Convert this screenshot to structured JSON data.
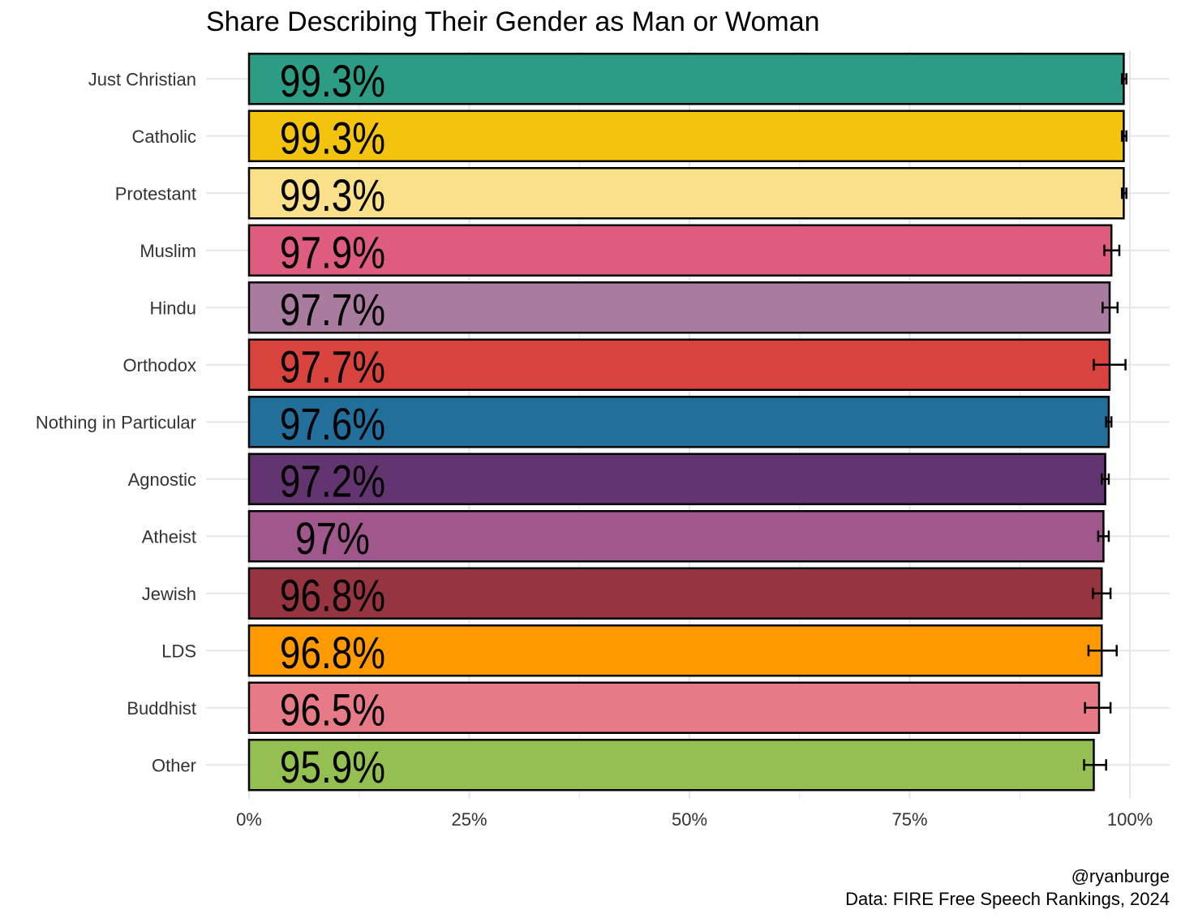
{
  "chart_data": {
    "type": "bar",
    "orientation": "horizontal",
    "title": "Share Describing Their Gender as Man or Woman",
    "xlabel": "",
    "ylabel": "",
    "xlim": [
      0,
      100
    ],
    "x_ticks": [
      "0%",
      "25%",
      "50%",
      "75%",
      "100%"
    ],
    "grid": true,
    "legend": "none",
    "categories": [
      "Just Christian",
      "Catholic",
      "Protestant",
      "Muslim",
      "Hindu",
      "Orthodox",
      "Nothing in Particular",
      "Agnostic",
      "Atheist",
      "Jewish",
      "LDS",
      "Buddhist",
      "Other"
    ],
    "values": [
      99.3,
      99.3,
      99.3,
      97.9,
      97.7,
      97.7,
      97.6,
      97.2,
      97,
      96.8,
      96.8,
      96.5,
      95.9
    ],
    "value_labels": [
      "99.3%",
      "99.3%",
      "99.3%",
      "97.9%",
      "97.7%",
      "97.7%",
      "97.6%",
      "97.2%",
      "97%",
      "96.8%",
      "96.8%",
      "96.5%",
      "95.9%"
    ],
    "error_low": [
      99.1,
      99.1,
      99.1,
      97.1,
      96.9,
      95.9,
      97.3,
      96.8,
      96.4,
      95.8,
      95.3,
      94.9,
      94.8
    ],
    "error_high": [
      99.6,
      99.6,
      99.6,
      98.8,
      98.6,
      99.5,
      97.9,
      97.6,
      97.6,
      97.8,
      98.5,
      97.8,
      97.3
    ],
    "colors": [
      "#2C9C84",
      "#F4C30E",
      "#FAE089",
      "#DE5C7E",
      "#A97C9F",
      "#D8443D",
      "#226F9C",
      "#633570",
      "#A0578C",
      "#963440",
      "#FE9A00",
      "#E67A86",
      "#93C050"
    ]
  },
  "caption": {
    "line1": "@ryanburge",
    "line2": "Data: FIRE Free Speech Rankings, 2024"
  }
}
